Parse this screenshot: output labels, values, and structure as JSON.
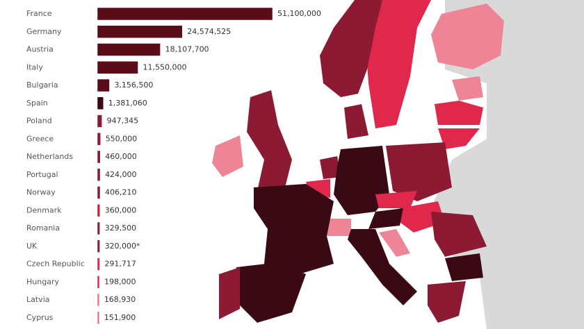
{
  "chart_data": {
    "type": "bar",
    "orientation": "horizontal",
    "categories": [
      "France",
      "Germany",
      "Austria",
      "Italy",
      "Bulgaria",
      "Spain",
      "Poland",
      "Greece",
      "Netherlands",
      "Portugal",
      "Norway",
      "Denmark",
      "Romania",
      "UK",
      "Czech Republic",
      "Hungary",
      "Latvia",
      "Cyprus"
    ],
    "values": [
      51100000,
      24574525,
      18107700,
      11550000,
      3156500,
      1381060,
      947345,
      550000,
      460000,
      424000,
      406210,
      360000,
      329500,
      320000,
      291717,
      198000,
      168930,
      151900
    ],
    "value_labels": [
      "51,100,000",
      "24,574,525",
      "18,107,700",
      "11,550,000",
      "3,156,500",
      "1,381,060",
      "947,345",
      "550,000",
      "460,000",
      "424,000",
      "406,210",
      "360,000",
      "329,500",
      "320,000*",
      "291,717",
      "198,000",
      "168,930",
      "151,900"
    ],
    "colors": [
      "#5a0c18",
      "#5a0c18",
      "#5a0c18",
      "#5a0c18",
      "#5a0c18",
      "#3a0a12",
      "#8c1a32",
      "#8c1a32",
      "#8c1a32",
      "#8c1a32",
      "#8c1a32",
      "#c8203f",
      "#8c1a32",
      "#8c1a32",
      "#e0284c",
      "#e0284c",
      "#ee6d86",
      "#ee6d86"
    ]
  }
}
